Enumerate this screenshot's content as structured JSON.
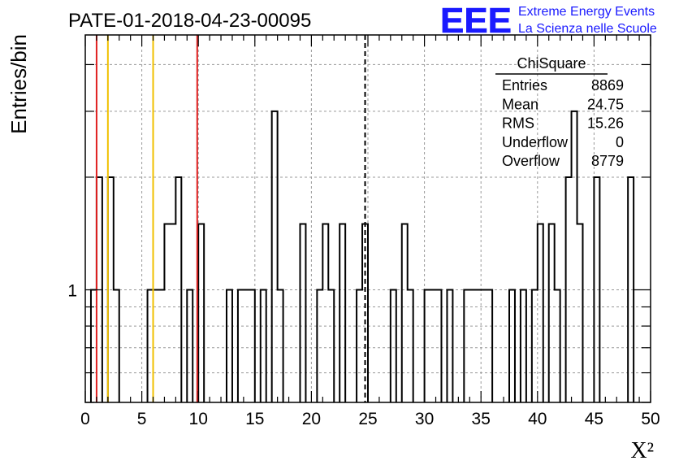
{
  "chart_data": {
    "type": "histogram",
    "title": "PATE-01-2018-04-23-00095",
    "xlabel": "X²",
    "ylabel": "Entries/bin",
    "xlim": [
      0,
      50
    ],
    "ylog": true,
    "ylim": [
      0.5,
      4.8
    ],
    "bin_width": 0.5,
    "x_ticks": [
      0,
      5,
      10,
      15,
      20,
      25,
      30,
      35,
      40,
      45,
      50
    ],
    "y_tick_labels": [
      {
        "value": 1,
        "label": "1"
      }
    ],
    "grid": true,
    "bins": [
      {
        "x0": 0.5,
        "x1": 1.0,
        "count": 1
      },
      {
        "x0": 1.0,
        "x1": 1.5,
        "count": 2
      },
      {
        "x0": 2.0,
        "x1": 2.5,
        "count": 2
      },
      {
        "x0": 2.5,
        "x1": 3.0,
        "count": 1
      },
      {
        "x0": 5.5,
        "x1": 7.0,
        "count": 1
      },
      {
        "x0": 7.0,
        "x1": 8.0,
        "count": 1.5
      },
      {
        "x0": 8.0,
        "x1": 8.5,
        "count": 2
      },
      {
        "x0": 9.0,
        "x1": 9.5,
        "count": 1
      },
      {
        "x0": 10.0,
        "x1": 10.5,
        "count": 1.5
      },
      {
        "x0": 12.5,
        "x1": 13.0,
        "count": 1
      },
      {
        "x0": 13.5,
        "x1": 15.0,
        "count": 1
      },
      {
        "x0": 15.5,
        "x1": 16.0,
        "count": 1
      },
      {
        "x0": 16.5,
        "x1": 17.0,
        "count": 3
      },
      {
        "x0": 17.0,
        "x1": 17.5,
        "count": 1
      },
      {
        "x0": 19.0,
        "x1": 19.5,
        "count": 1.5
      },
      {
        "x0": 20.5,
        "x1": 21.0,
        "count": 1
      },
      {
        "x0": 21.0,
        "x1": 21.5,
        "count": 1.5
      },
      {
        "x0": 21.5,
        "x1": 22.0,
        "count": 1
      },
      {
        "x0": 22.5,
        "x1": 23.0,
        "count": 1.5
      },
      {
        "x0": 24.0,
        "x1": 24.5,
        "count": 1
      },
      {
        "x0": 24.5,
        "x1": 25.0,
        "count": 1.5
      },
      {
        "x0": 27.0,
        "x1": 27.5,
        "count": 1
      },
      {
        "x0": 28.0,
        "x1": 28.5,
        "count": 1.5
      },
      {
        "x0": 28.5,
        "x1": 29.0,
        "count": 1
      },
      {
        "x0": 30.0,
        "x1": 31.5,
        "count": 1
      },
      {
        "x0": 32.0,
        "x1": 32.5,
        "count": 1
      },
      {
        "x0": 33.5,
        "x1": 36.0,
        "count": 1
      },
      {
        "x0": 37.5,
        "x1": 38.0,
        "count": 1
      },
      {
        "x0": 38.5,
        "x1": 39.0,
        "count": 1
      },
      {
        "x0": 39.5,
        "x1": 40.0,
        "count": 1
      },
      {
        "x0": 40.0,
        "x1": 40.5,
        "count": 1.5
      },
      {
        "x0": 41.0,
        "x1": 41.5,
        "count": 1.5
      },
      {
        "x0": 41.5,
        "x1": 42.0,
        "count": 1
      },
      {
        "x0": 42.5,
        "x1": 43.0,
        "count": 2
      },
      {
        "x0": 43.0,
        "x1": 43.5,
        "count": 3
      },
      {
        "x0": 43.5,
        "x1": 44.0,
        "count": 1.5
      },
      {
        "x0": 45.0,
        "x1": 45.5,
        "count": 2
      },
      {
        "x0": 48.0,
        "x1": 48.5,
        "count": 2
      }
    ],
    "vertical_lines": [
      {
        "x": 1.0,
        "color": "#e02020",
        "style": "solid"
      },
      {
        "x": 2.0,
        "color": "#f0c000",
        "style": "solid"
      },
      {
        "x": 6.0,
        "color": "#f0c000",
        "style": "solid"
      },
      {
        "x": 9.9,
        "color": "#e02020",
        "style": "solid"
      },
      {
        "x": 24.75,
        "color": "#000000",
        "style": "dashed"
      }
    ],
    "stats_box": {
      "title": "ChiSquare",
      "rows": [
        {
          "label": "Entries",
          "value": "8869"
        },
        {
          "label": "Mean",
          "value": "24.75"
        },
        {
          "label": "RMS",
          "value": "15.26"
        },
        {
          "label": "Underflow",
          "value": "0"
        },
        {
          "label": "Overflow",
          "value": "8779"
        }
      ]
    }
  },
  "logo": {
    "text": "EEE",
    "line1": "Extreme Energy Events",
    "line2": "La Scienza nelle Scuole",
    "color": "#1a1aff"
  }
}
